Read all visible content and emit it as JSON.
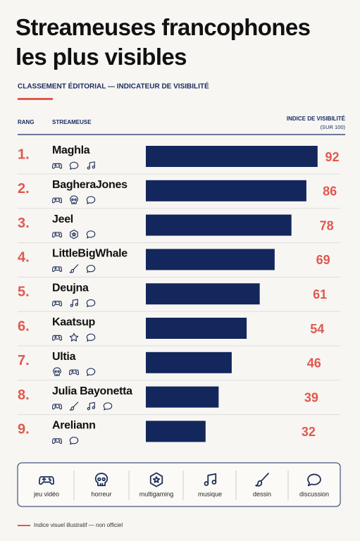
{
  "chart_data": {
    "type": "bar",
    "title": "Streameuses francophones les plus visibles",
    "subtitle": "CLASSEMENT ÉDITORIAL — INDICATEUR DE VISIBILITÉ",
    "rank_header": "RANG",
    "name_header": "STREAMEUSE",
    "value_header": "INDICE DE VISIBILITÉ",
    "value_subheader": "(SUR 100)",
    "ranks": [
      "1.",
      "2.",
      "3.",
      "4.",
      "5.",
      "6.",
      "7.",
      "8.",
      "9."
    ],
    "categories": [
      "Maghla",
      "BagheraJones",
      "Jeel",
      "LittleBigWhale",
      "Deujna",
      "Kaatsup",
      "Ultia",
      "Julia Bayonetta",
      "Areliann"
    ],
    "values": [
      92,
      86,
      78,
      69,
      61,
      54,
      46,
      39,
      32
    ],
    "color": "#13275c",
    "label_color": "#e0584f",
    "xlim": [
      0,
      100
    ]
  },
  "legend": [
    "jeu vidéo",
    "horreur",
    "multigaming",
    "musique",
    "dessin",
    "discussion"
  ],
  "footnote": "Indice visuel illustratif — non officiel"
}
